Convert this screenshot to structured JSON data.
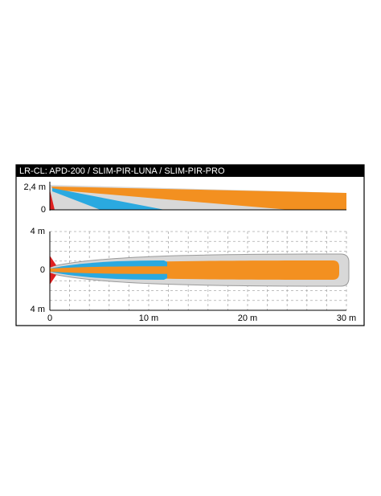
{
  "header": {
    "title": "LR-CL: APD-200 / SLIM-PIR-LUNA / SLIM-PIR-PRO"
  },
  "side_view": {
    "y_labels": [
      "2,4 m",
      "0"
    ]
  },
  "top_view": {
    "y_labels": [
      "4 m",
      "0",
      "4 m"
    ],
    "x_labels": [
      "0",
      "10 m",
      "20 m",
      "30 m"
    ]
  }
}
